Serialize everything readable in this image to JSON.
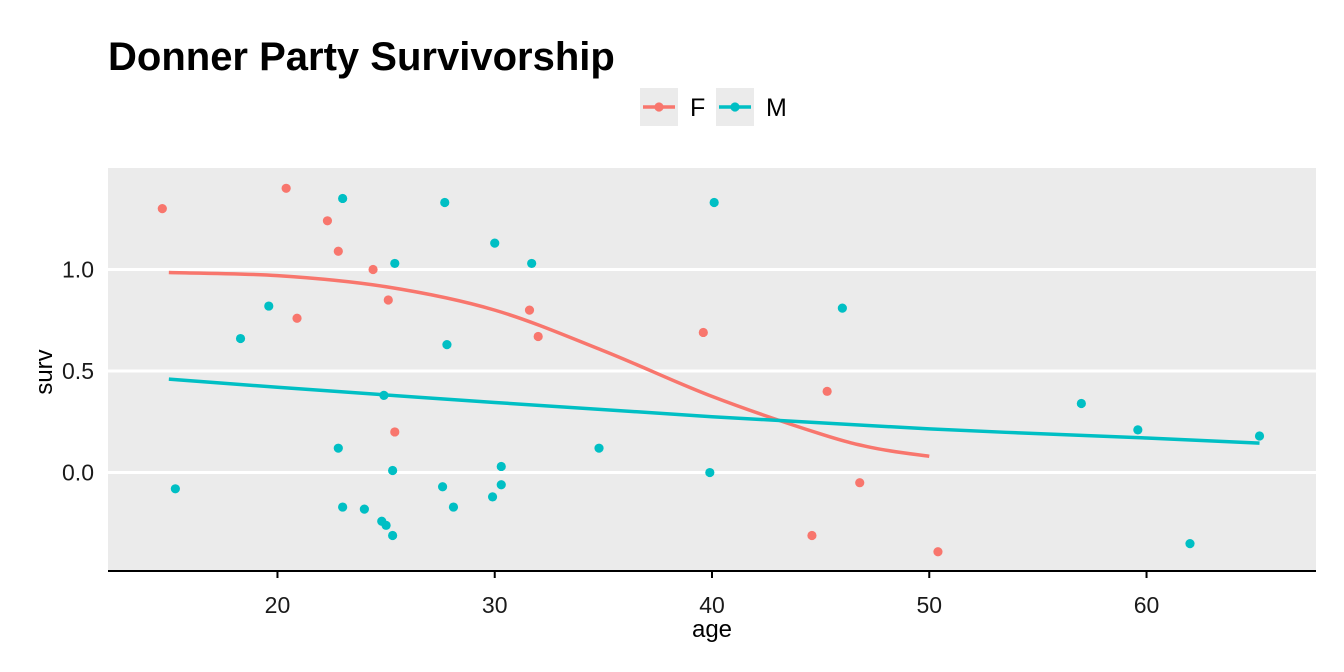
{
  "chart_data": {
    "type": "scatter",
    "title": "Donner Party Survivorship",
    "xlabel": "age",
    "ylabel": "surv",
    "xlim": [
      12.2,
      67.8
    ],
    "ylim": [
      -0.48,
      1.5
    ],
    "x_ticks": [
      20,
      30,
      40,
      50,
      60
    ],
    "x_tick_labels": [
      "20",
      "30",
      "40",
      "50",
      "60"
    ],
    "y_ticks": [
      0.0,
      0.5,
      1.0
    ],
    "y_tick_labels": [
      "0.0",
      "0.5",
      "1.0"
    ],
    "grid": true,
    "legend_position": "top",
    "series": [
      {
        "name": "F",
        "color": "#F8766D",
        "points": [
          {
            "x": 14.7,
            "y": 1.3
          },
          {
            "x": 20.4,
            "y": 1.4
          },
          {
            "x": 22.3,
            "y": 1.24
          },
          {
            "x": 22.8,
            "y": 1.09
          },
          {
            "x": 24.4,
            "y": 1.0
          },
          {
            "x": 25.1,
            "y": 0.85
          },
          {
            "x": 20.9,
            "y": 0.76
          },
          {
            "x": 25.4,
            "y": 0.2
          },
          {
            "x": 31.6,
            "y": 0.8
          },
          {
            "x": 32.0,
            "y": 0.67
          },
          {
            "x": 39.6,
            "y": 0.69
          },
          {
            "x": 45.3,
            "y": 0.4
          },
          {
            "x": 46.8,
            "y": -0.05
          },
          {
            "x": 44.6,
            "y": -0.31
          },
          {
            "x": 50.4,
            "y": -0.39
          }
        ],
        "fit": [
          {
            "x": 15,
            "y": 0.985
          },
          {
            "x": 20,
            "y": 0.97
          },
          {
            "x": 25,
            "y": 0.915
          },
          {
            "x": 30,
            "y": 0.8
          },
          {
            "x": 35,
            "y": 0.6
          },
          {
            "x": 40,
            "y": 0.375
          },
          {
            "x": 45,
            "y": 0.19
          },
          {
            "x": 47.5,
            "y": 0.12
          },
          {
            "x": 50,
            "y": 0.08
          }
        ]
      },
      {
        "name": "M",
        "color": "#00BFC4",
        "points": [
          {
            "x": 15.3,
            "y": -0.08
          },
          {
            "x": 18.3,
            "y": 0.66
          },
          {
            "x": 19.6,
            "y": 0.82
          },
          {
            "x": 22.8,
            "y": 0.12
          },
          {
            "x": 23.0,
            "y": 1.35
          },
          {
            "x": 23.0,
            "y": -0.17
          },
          {
            "x": 24.0,
            "y": -0.18
          },
          {
            "x": 24.8,
            "y": -0.24
          },
          {
            "x": 24.9,
            "y": 0.38
          },
          {
            "x": 25.0,
            "y": -0.26
          },
          {
            "x": 25.3,
            "y": -0.31
          },
          {
            "x": 25.3,
            "y": 0.01
          },
          {
            "x": 25.4,
            "y": 1.03
          },
          {
            "x": 27.6,
            "y": -0.07
          },
          {
            "x": 27.7,
            "y": 1.33
          },
          {
            "x": 27.8,
            "y": 0.63
          },
          {
            "x": 28.1,
            "y": -0.17
          },
          {
            "x": 29.9,
            "y": -0.12
          },
          {
            "x": 30.0,
            "y": 1.13
          },
          {
            "x": 30.3,
            "y": 0.03
          },
          {
            "x": 30.3,
            "y": -0.06
          },
          {
            "x": 31.7,
            "y": 1.03
          },
          {
            "x": 34.8,
            "y": 0.12
          },
          {
            "x": 39.9,
            "y": 0.0
          },
          {
            "x": 40.1,
            "y": 1.33
          },
          {
            "x": 46.0,
            "y": 0.81
          },
          {
            "x": 57.0,
            "y": 0.34
          },
          {
            "x": 59.6,
            "y": 0.21
          },
          {
            "x": 62.0,
            "y": -0.35
          },
          {
            "x": 65.2,
            "y": 0.18
          }
        ],
        "fit": [
          {
            "x": 15,
            "y": 0.46
          },
          {
            "x": 20,
            "y": 0.42
          },
          {
            "x": 30,
            "y": 0.345
          },
          {
            "x": 40,
            "y": 0.275
          },
          {
            "x": 50,
            "y": 0.215
          },
          {
            "x": 60,
            "y": 0.17
          },
          {
            "x": 65.2,
            "y": 0.145
          }
        ]
      }
    ]
  }
}
